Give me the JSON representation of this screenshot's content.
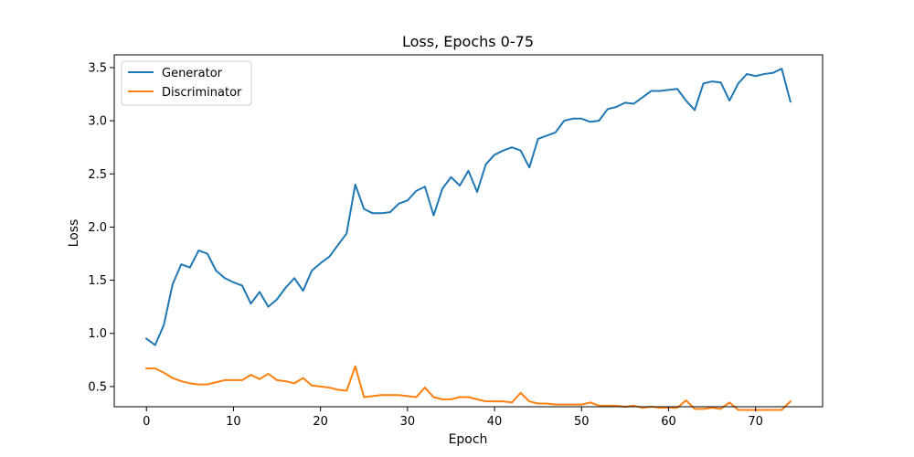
{
  "chart_data": {
    "type": "line",
    "title": "Loss, Epochs 0-75",
    "xlabel": "Epoch",
    "ylabel": "Loss",
    "xlim": [
      -3.7,
      77.7
    ],
    "ylim": [
      0.31,
      3.62
    ],
    "xticks": [
      0,
      10,
      20,
      30,
      40,
      50,
      60,
      70
    ],
    "yticks": [
      0.5,
      1.0,
      1.5,
      2.0,
      2.5,
      3.0,
      3.5
    ],
    "xtick_labels": [
      "0",
      "10",
      "20",
      "30",
      "40",
      "50",
      "60",
      "70"
    ],
    "ytick_labels": [
      "0.5",
      "1.0",
      "1.5",
      "2.0",
      "2.5",
      "3.0",
      "3.5"
    ],
    "grid": false,
    "legend_position": "top-left",
    "series": [
      {
        "name": "Generator",
        "color": "#1f77b4",
        "values": [
          0.95,
          0.89,
          1.08,
          1.46,
          1.65,
          1.62,
          1.78,
          1.75,
          1.59,
          1.52,
          1.48,
          1.45,
          1.28,
          1.39,
          1.25,
          1.32,
          1.43,
          1.52,
          1.4,
          1.59,
          1.66,
          1.72,
          1.83,
          1.94,
          2.4,
          2.17,
          2.13,
          2.13,
          2.14,
          2.22,
          2.25,
          2.34,
          2.38,
          2.11,
          2.36,
          2.47,
          2.39,
          2.53,
          2.33,
          2.59,
          2.68,
          2.72,
          2.75,
          2.72,
          2.56,
          2.83,
          2.86,
          2.89,
          3.0,
          3.02,
          3.02,
          2.99,
          3.0,
          3.11,
          3.13,
          3.17,
          3.16,
          3.22,
          3.28,
          3.28,
          3.29,
          3.3,
          3.19,
          3.1,
          3.35,
          3.37,
          3.36,
          3.19,
          3.35,
          3.44,
          3.42,
          3.44,
          3.45,
          3.49,
          3.18
        ]
      },
      {
        "name": "Discriminator",
        "color": "#ff7f0e",
        "values": [
          0.67,
          0.67,
          0.63,
          0.58,
          0.55,
          0.53,
          0.52,
          0.52,
          0.54,
          0.56,
          0.56,
          0.56,
          0.61,
          0.57,
          0.62,
          0.56,
          0.55,
          0.53,
          0.58,
          0.51,
          0.5,
          0.49,
          0.47,
          0.46,
          0.69,
          0.4,
          0.41,
          0.42,
          0.42,
          0.42,
          0.41,
          0.4,
          0.49,
          0.4,
          0.38,
          0.38,
          0.4,
          0.4,
          0.38,
          0.36,
          0.36,
          0.36,
          0.35,
          0.44,
          0.36,
          0.34,
          0.34,
          0.33,
          0.33,
          0.33,
          0.33,
          0.35,
          0.32,
          0.32,
          0.32,
          0.31,
          0.32,
          0.3,
          0.31,
          0.3,
          0.3,
          0.3,
          0.37,
          0.29,
          0.29,
          0.3,
          0.29,
          0.35,
          0.28,
          0.28,
          0.28,
          0.28,
          0.28,
          0.28,
          0.36
        ]
      }
    ]
  }
}
